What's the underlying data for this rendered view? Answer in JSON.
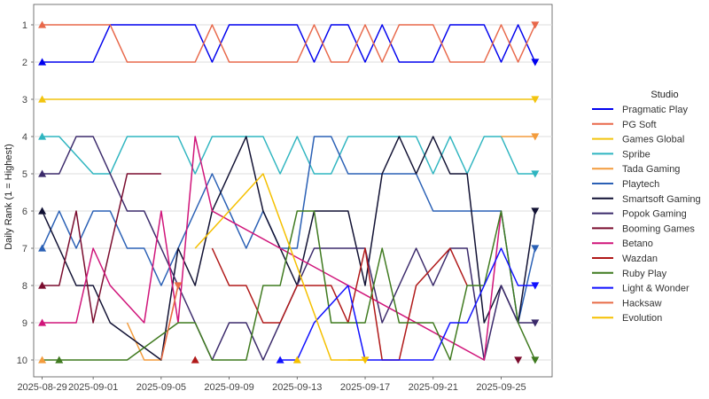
{
  "chart_data": {
    "type": "line",
    "xlabel": "",
    "ylabel": "Daily Rank (1 = Highest)",
    "legend_title": "Studio",
    "legend_position": "right",
    "grid": true,
    "x_range": [
      "2025-08-28",
      "2025-09-28"
    ],
    "x_ticks": [
      "2025-08-29",
      "2025-09-01",
      "2025-09-05",
      "2025-09-09",
      "2025-09-13",
      "2025-09-17",
      "2025-09-21",
      "2025-09-25"
    ],
    "y_range": [
      1,
      10
    ],
    "y_reversed": true,
    "y_ticks": [
      1,
      2,
      3,
      4,
      5,
      6,
      7,
      8,
      9,
      10
    ],
    "series": [
      {
        "name": "Pragmatic Play",
        "color": "#0000ee",
        "points": [
          [
            "2025-08-29",
            2
          ],
          [
            "2025-09-01",
            2
          ],
          [
            "2025-09-02",
            1
          ],
          [
            "2025-09-06",
            1
          ],
          [
            "2025-09-07",
            1
          ],
          [
            "2025-09-08",
            2
          ],
          [
            "2025-09-09",
            1
          ],
          [
            "2025-09-13",
            1
          ],
          [
            "2025-09-14",
            2
          ],
          [
            "2025-09-15",
            1
          ],
          [
            "2025-09-16",
            1
          ],
          [
            "2025-09-17",
            2
          ],
          [
            "2025-09-18",
            1
          ],
          [
            "2025-09-19",
            2
          ],
          [
            "2025-09-21",
            2
          ],
          [
            "2025-09-22",
            1
          ],
          [
            "2025-09-24",
            1
          ],
          [
            "2025-09-25",
            2
          ],
          [
            "2025-09-26",
            1
          ],
          [
            "2025-09-27",
            2
          ]
        ]
      },
      {
        "name": "PG Soft",
        "color": "#e8684a",
        "points": [
          [
            "2025-08-29",
            1
          ],
          [
            "2025-09-02",
            1
          ],
          [
            "2025-09-03",
            2
          ],
          [
            "2025-09-06",
            2
          ],
          [
            "2025-09-07",
            2
          ],
          [
            "2025-09-08",
            1
          ],
          [
            "2025-09-09",
            2
          ],
          [
            "2025-09-13",
            2
          ],
          [
            "2025-09-14",
            1
          ],
          [
            "2025-09-15",
            2
          ],
          [
            "2025-09-16",
            2
          ],
          [
            "2025-09-17",
            1
          ],
          [
            "2025-09-18",
            2
          ],
          [
            "2025-09-19",
            1
          ],
          [
            "2025-09-21",
            1
          ],
          [
            "2025-09-22",
            2
          ],
          [
            "2025-09-24",
            2
          ],
          [
            "2025-09-25",
            1
          ],
          [
            "2025-09-26",
            2
          ],
          [
            "2025-09-27",
            1
          ]
        ]
      },
      {
        "name": "Games Global",
        "color": "#f2c40f",
        "points": [
          [
            "2025-08-29",
            3
          ],
          [
            "2025-09-27",
            3
          ]
        ]
      },
      {
        "name": "Spribe",
        "color": "#2fb5c0",
        "points": [
          [
            "2025-08-29",
            4
          ],
          [
            "2025-08-30",
            4
          ],
          [
            "2025-09-01",
            5
          ],
          [
            "2025-09-02",
            5
          ],
          [
            "2025-09-03",
            4
          ],
          [
            "2025-09-06",
            4
          ],
          [
            "2025-09-07",
            5
          ],
          [
            "2025-09-08",
            4
          ],
          [
            "2025-09-11",
            4
          ],
          [
            "2025-09-12",
            5
          ],
          [
            "2025-09-13",
            4
          ],
          [
            "2025-09-14",
            5
          ],
          [
            "2025-09-15",
            5
          ],
          [
            "2025-09-16",
            4
          ],
          [
            "2025-09-20",
            4
          ],
          [
            "2025-09-21",
            5
          ],
          [
            "2025-09-22",
            4
          ],
          [
            "2025-09-23",
            5
          ],
          [
            "2025-09-24",
            4
          ],
          [
            "2025-09-25",
            4
          ],
          [
            "2025-09-26",
            5
          ],
          [
            "2025-09-27",
            5
          ]
        ]
      },
      {
        "name": "Tada Gaming",
        "color": "#f39c3d",
        "points": [
          [
            "2025-09-03",
            9
          ],
          [
            "2025-09-04",
            10
          ],
          [
            "2025-09-05",
            10
          ],
          [
            "2025-09-06",
            8
          ]
        ]
      },
      {
        "name": "Playtech",
        "color": "#2a60b5",
        "points": [
          [
            "2025-08-29",
            7
          ],
          [
            "2025-08-30",
            6
          ],
          [
            "2025-08-31",
            7
          ],
          [
            "2025-09-01",
            6
          ],
          [
            "2025-09-02",
            6
          ],
          [
            "2025-09-03",
            7
          ],
          [
            "2025-09-04",
            7
          ],
          [
            "2025-09-05",
            8
          ],
          [
            "2025-09-07",
            6
          ],
          [
            "2025-09-08",
            5
          ],
          [
            "2025-09-10",
            7
          ],
          [
            "2025-09-11",
            6
          ],
          [
            "2025-09-12",
            7
          ],
          [
            "2025-09-13",
            7
          ],
          [
            "2025-09-14",
            4
          ],
          [
            "2025-09-15",
            4
          ],
          [
            "2025-09-16",
            5
          ],
          [
            "2025-09-20",
            5
          ],
          [
            "2025-09-21",
            6
          ],
          [
            "2025-09-25",
            6
          ],
          [
            "2025-09-26",
            9
          ],
          [
            "2025-09-27",
            7
          ]
        ]
      },
      {
        "name": "Smartsoft Gaming",
        "color": "#111133",
        "points": [
          [
            "2025-08-29",
            6
          ],
          [
            "2025-08-30",
            7
          ],
          [
            "2025-08-31",
            8
          ],
          [
            "2025-09-01",
            8
          ],
          [
            "2025-09-02",
            9
          ],
          [
            "2025-09-05",
            10
          ],
          [
            "2025-09-06",
            7
          ],
          [
            "2025-09-07",
            8
          ],
          [
            "2025-09-08",
            6
          ],
          [
            "2025-09-09",
            5
          ],
          [
            "2025-09-10",
            4
          ],
          [
            "2025-09-11",
            6
          ],
          [
            "2025-09-12",
            7
          ],
          [
            "2025-09-13",
            8
          ],
          [
            "2025-09-14",
            6
          ],
          [
            "2025-09-16",
            6
          ],
          [
            "2025-09-17",
            8
          ],
          [
            "2025-09-18",
            5
          ],
          [
            "2025-09-19",
            4
          ],
          [
            "2025-09-20",
            5
          ],
          [
            "2025-09-21",
            4
          ],
          [
            "2025-09-22",
            5
          ],
          [
            "2025-09-23",
            5
          ],
          [
            "2025-09-24",
            9
          ],
          [
            "2025-09-25",
            8
          ],
          [
            "2025-09-26",
            9
          ],
          [
            "2025-09-27",
            6
          ]
        ]
      },
      {
        "name": "Popok Gaming",
        "color": "#3b2a6b",
        "points": [
          [
            "2025-08-29",
            5
          ],
          [
            "2025-08-30",
            5
          ],
          [
            "2025-08-31",
            4
          ],
          [
            "2025-09-01",
            4
          ],
          [
            "2025-09-02",
            5
          ],
          [
            "2025-09-03",
            6
          ],
          [
            "2025-09-04",
            6
          ],
          [
            "2025-09-05",
            7
          ],
          [
            "2025-09-06",
            8
          ],
          [
            "2025-09-07",
            9
          ],
          [
            "2025-09-08",
            10
          ],
          [
            "2025-09-09",
            9
          ],
          [
            "2025-09-10",
            9
          ],
          [
            "2025-09-11",
            10
          ],
          [
            "2025-09-12",
            9
          ],
          [
            "2025-09-14",
            7
          ],
          [
            "2025-09-17",
            7
          ],
          [
            "2025-09-18",
            9
          ],
          [
            "2025-09-19",
            8
          ],
          [
            "2025-09-20",
            7
          ],
          [
            "2025-09-21",
            8
          ],
          [
            "2025-09-22",
            7
          ],
          [
            "2025-09-23",
            7
          ],
          [
            "2025-09-24",
            10
          ],
          [
            "2025-09-25",
            8
          ],
          [
            "2025-09-26",
            9
          ],
          [
            "2025-09-27",
            9
          ]
        ]
      },
      {
        "name": "Booming Games",
        "color": "#7a0c2e",
        "points": [
          [
            "2025-08-29",
            8
          ],
          [
            "2025-08-30",
            8
          ],
          [
            "2025-08-31",
            6
          ],
          [
            "2025-09-01",
            9
          ],
          [
            "2025-09-02",
            7
          ],
          [
            "2025-09-03",
            5
          ],
          [
            "2025-09-05",
            5
          ]
        ]
      },
      {
        "name": "Betano",
        "color": "#d0157a",
        "points": [
          [
            "2025-08-29",
            9
          ],
          [
            "2025-08-31",
            9
          ],
          [
            "2025-09-01",
            7
          ],
          [
            "2025-09-02",
            8
          ],
          [
            "2025-09-04",
            9
          ],
          [
            "2025-09-05",
            6
          ],
          [
            "2025-09-06",
            9
          ],
          [
            "2025-09-07",
            4
          ],
          [
            "2025-09-08",
            6
          ],
          [
            "2025-09-24",
            10
          ],
          [
            "2025-09-25",
            6
          ]
        ]
      },
      {
        "name": "Wazdan",
        "color": "#b01818",
        "points": [
          [
            "2025-09-08",
            7
          ],
          [
            "2025-09-09",
            8
          ],
          [
            "2025-09-10",
            8
          ],
          [
            "2025-09-11",
            9
          ],
          [
            "2025-09-12",
            9
          ],
          [
            "2025-09-13",
            8
          ],
          [
            "2025-09-15",
            8
          ],
          [
            "2025-09-16",
            9
          ],
          [
            "2025-09-17",
            7
          ],
          [
            "2025-09-18",
            10
          ],
          [
            "2025-09-19",
            10
          ],
          [
            "2025-09-20",
            8
          ],
          [
            "2025-09-22",
            7
          ],
          [
            "2025-09-23",
            8
          ]
        ]
      },
      {
        "name": "Ruby Play",
        "color": "#3f7a1f",
        "points": [
          [
            "2025-08-29",
            10
          ],
          [
            "2025-09-03",
            10
          ],
          [
            "2025-09-06",
            9
          ],
          [
            "2025-09-07",
            9
          ],
          [
            "2025-09-08",
            10
          ],
          [
            "2025-09-10",
            10
          ],
          [
            "2025-09-11",
            8
          ],
          [
            "2025-09-12",
            8
          ],
          [
            "2025-09-13",
            6
          ],
          [
            "2025-09-14",
            6
          ],
          [
            "2025-09-15",
            9
          ],
          [
            "2025-09-16",
            9
          ],
          [
            "2025-09-17",
            9
          ],
          [
            "2025-09-18",
            7
          ],
          [
            "2025-09-19",
            9
          ],
          [
            "2025-09-21",
            9
          ],
          [
            "2025-09-22",
            10
          ],
          [
            "2025-09-23",
            8
          ],
          [
            "2025-09-24",
            8
          ],
          [
            "2025-09-25",
            6
          ],
          [
            "2025-09-26",
            9
          ],
          [
            "2025-09-27",
            10
          ]
        ]
      },
      {
        "name": "Light & Wonder",
        "color": "#1010ff",
        "points": [
          [
            "2025-09-12",
            10
          ],
          [
            "2025-09-13",
            10
          ],
          [
            "2025-09-14",
            9
          ],
          [
            "2025-09-16",
            8
          ],
          [
            "2025-09-17",
            10
          ],
          [
            "2025-09-21",
            10
          ],
          [
            "2025-09-22",
            9
          ],
          [
            "2025-09-23",
            9
          ],
          [
            "2025-09-24",
            8
          ],
          [
            "2025-09-25",
            7
          ],
          [
            "2025-09-26",
            8
          ],
          [
            "2025-09-27",
            8
          ]
        ]
      },
      {
        "name": "Hacksaw",
        "color": "#e86b46",
        "points": [
          [
            "2025-09-05",
            10
          ],
          [
            "2025-09-06",
            8
          ]
        ]
      },
      {
        "name": "Evolution",
        "color": "#f5c000",
        "points": [
          [
            "2025-09-07",
            7
          ],
          [
            "2025-09-09",
            6
          ],
          [
            "2025-09-11",
            5
          ],
          [
            "2025-09-15",
            10
          ],
          [
            "2025-09-17",
            10
          ]
        ]
      }
    ],
    "markers": [
      {
        "series": 0,
        "start": [
          "2025-08-29",
          2
        ],
        "end": [
          "2025-09-27",
          2
        ]
      },
      {
        "series": 1,
        "start": [
          "2025-08-29",
          1
        ],
        "end": [
          "2025-09-27",
          1
        ]
      },
      {
        "series": 2,
        "start": [
          "2025-08-29",
          3
        ],
        "end": [
          "2025-09-27",
          3
        ]
      },
      {
        "series": 3,
        "start": [
          "2025-08-29",
          4
        ],
        "end": [
          "2025-09-27",
          5
        ]
      },
      {
        "series": 4,
        "start": [
          "2025-08-29",
          10
        ],
        "end": [
          "2025-09-27",
          4
        ]
      },
      {
        "series": 5,
        "start": [
          "2025-08-29",
          7
        ],
        "end": [
          "2025-09-27",
          7
        ]
      },
      {
        "series": 6,
        "start": [
          "2025-08-29",
          6
        ],
        "end": [
          "2025-09-27",
          6
        ]
      },
      {
        "series": 7,
        "start": [
          "2025-08-29",
          5
        ],
        "end": [
          "2025-09-27",
          9
        ]
      },
      {
        "series": 8,
        "start": [
          "2025-08-29",
          8
        ],
        "end": [
          "2025-09-26",
          10
        ]
      },
      {
        "series": 9,
        "start": [
          "2025-08-29",
          9
        ],
        "end": null
      },
      {
        "series": 10,
        "start": [
          "2025-09-07",
          10
        ],
        "end": null
      },
      {
        "series": 11,
        "start": [
          "2025-08-30",
          10
        ],
        "end": [
          "2025-09-27",
          10
        ]
      },
      {
        "series": 12,
        "start": [
          "2025-09-12",
          10
        ],
        "end": [
          "2025-09-27",
          8
        ]
      },
      {
        "series": 13,
        "start": null,
        "end": [
          "2025-09-06",
          8
        ]
      },
      {
        "series": 14,
        "start": [
          "2025-09-13",
          10
        ],
        "end": [
          "2025-09-17",
          10
        ]
      }
    ],
    "extra_segments": [
      {
        "series": 4,
        "points": [
          [
            "2025-09-25",
            4
          ],
          [
            "2025-09-27",
            4
          ]
        ]
      },
      {
        "series": 14,
        "points": [
          [
            "2025-09-16",
            10
          ],
          [
            "2025-09-17",
            10
          ]
        ]
      }
    ]
  }
}
